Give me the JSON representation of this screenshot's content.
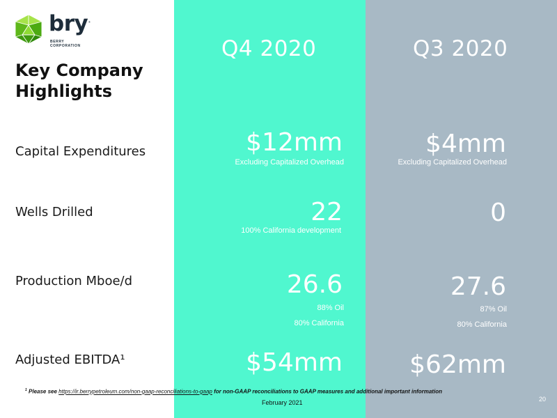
{
  "logo": {
    "word": "bry",
    "sub_line1": "BERRY",
    "sub_line2": "CORPORATION",
    "tm": "®"
  },
  "title": {
    "line1": "Key Company",
    "line2": "Highlights"
  },
  "columns": {
    "q4": "Q4 2020",
    "q3": "Q3 2020"
  },
  "rows": {
    "capex": {
      "label": "Capital Expenditures",
      "q4_value": "$12mm",
      "q4_note": "Excluding Capitalized Overhead",
      "q3_value": "$4mm",
      "q3_note": "Excluding Capitalized Overhead"
    },
    "wells": {
      "label": "Wells Drilled",
      "q4_value": "22",
      "q4_note": "100% California development",
      "q3_value": "0"
    },
    "production": {
      "label": "Production Mboe/d",
      "q4_value": "26.6",
      "q4_note1": "88% Oil",
      "q4_note2": "80% California",
      "q3_value": "27.6",
      "q3_note1": "87% Oil",
      "q3_note2": "80% California"
    },
    "ebitda": {
      "label": "Adjusted EBITDA¹",
      "q4_value": "$54mm",
      "q3_value": "$62mm"
    }
  },
  "footer": {
    "sup": "1",
    "note_prefix": " Please see ",
    "link": "https://ir.berrypetroleum.com/non-gaap-reconciliations-to-gaap",
    "note_suffix": " for non-GAAP reconciliations to GAAP measures and additional important information",
    "date": "February 2021",
    "page": "20"
  },
  "colors": {
    "q4_column": "#50f7cf",
    "q3_column": "#a8b9c5",
    "logo_green": "#7ed321",
    "logo_dark": "#1e2d3b"
  }
}
